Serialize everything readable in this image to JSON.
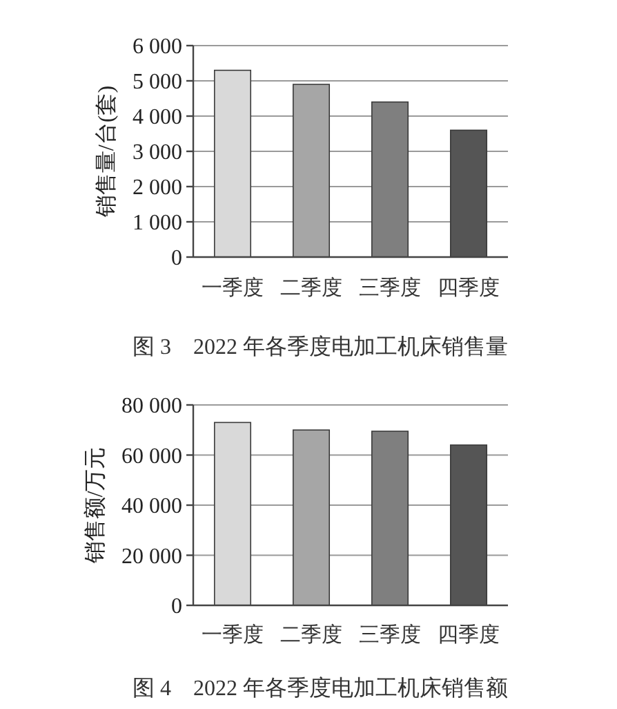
{
  "chart_data": [
    {
      "type": "bar",
      "title": "图 3　2022 年各季度电加工机床销售量",
      "ylabel": "销售量/台(套)",
      "categories": [
        "一季度",
        "二季度",
        "三季度",
        "四季度"
      ],
      "values": [
        5300,
        4900,
        4400,
        3600
      ],
      "colors": [
        "#d9d9d9",
        "#a6a6a6",
        "#7f7f7f",
        "#555555"
      ],
      "ylim": [
        0,
        6000
      ],
      "yticks": [
        0,
        {
          "value": 1000,
          "label": "1 000"
        },
        {
          "value": 2000,
          "label": "2 000"
        },
        {
          "value": 3000,
          "label": "3 000"
        },
        {
          "value": 4000,
          "label": "4 000"
        },
        {
          "value": 5000,
          "label": "5 000"
        },
        {
          "value": 6000,
          "label": "6 000"
        }
      ],
      "grid": "y"
    },
    {
      "type": "bar",
      "title": "图 4　2022 年各季度电加工机床销售额",
      "ylabel": "销售额/万元",
      "categories": [
        "一季度",
        "二季度",
        "三季度",
        "四季度"
      ],
      "values": [
        73000,
        70000,
        69500,
        64000
      ],
      "colors": [
        "#d9d9d9",
        "#a6a6a6",
        "#7f7f7f",
        "#555555"
      ],
      "ylim": [
        0,
        80000
      ],
      "yticks": [
        0,
        {
          "value": 20000,
          "label": "20 000"
        },
        {
          "value": 40000,
          "label": "40 000"
        },
        {
          "value": 60000,
          "label": "60 000"
        },
        {
          "value": 80000,
          "label": "80 000"
        }
      ],
      "grid": "y"
    }
  ]
}
